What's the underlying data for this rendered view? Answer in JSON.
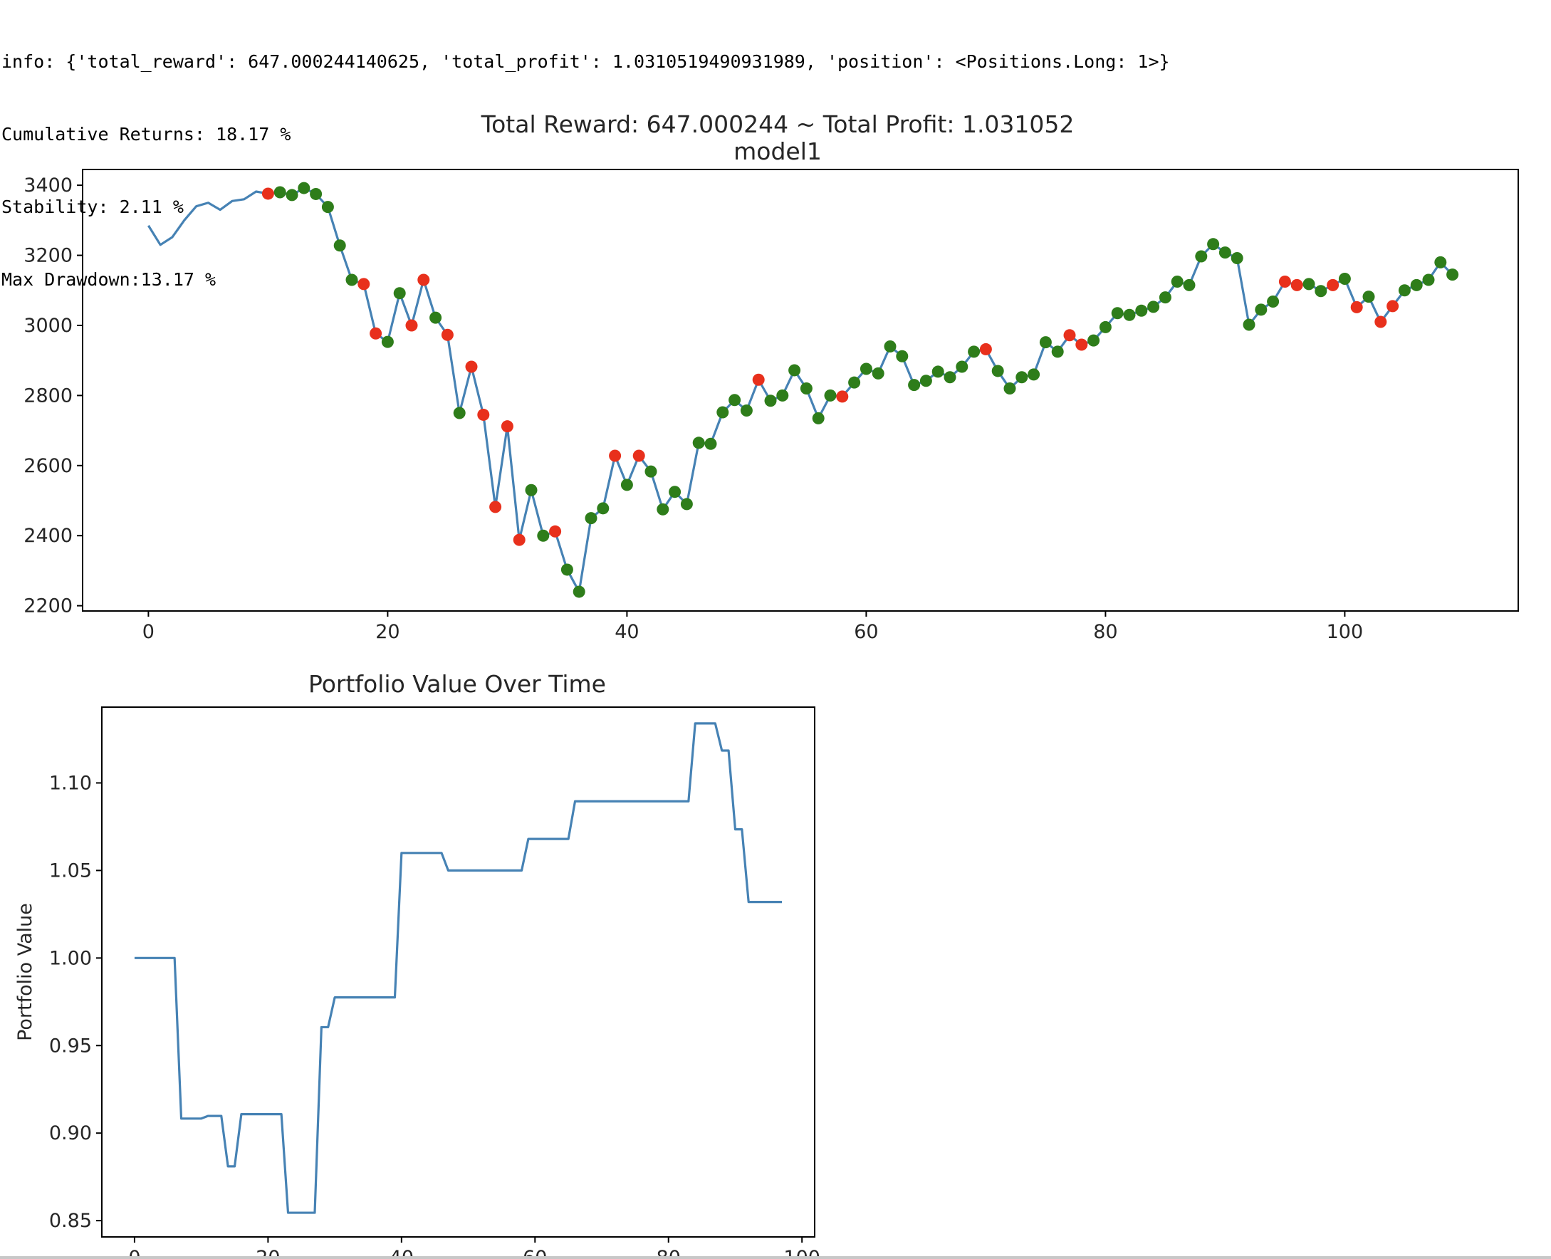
{
  "console": {
    "lines": [
      "info: {'total_reward': 647.000244140625, 'total_profit': 1.0310519490931989, 'position': <Positions.Long: 1>}",
      "Cumulative Returns: 18.17 %",
      "Stability: 2.11 %",
      "Max Drawdown:13.17 %"
    ]
  },
  "colors": {
    "line": "#4682b4",
    "buy_marker": "#2e7d1a",
    "sell_marker": "#e8301c",
    "axis": "#000000",
    "text": "#262626"
  },
  "chart_data": [
    {
      "type": "line",
      "title": "Total Reward: 647.000244 ~ Total Profit: 1.031052",
      "subtitle": "model1",
      "xlabel": "",
      "ylabel": "",
      "xlim": [
        -5.5,
        114.5
      ],
      "ylim": [
        2185,
        3445
      ],
      "xticks": [
        0,
        20,
        40,
        60,
        80,
        100
      ],
      "yticks": [
        2200,
        2400,
        2600,
        2800,
        3000,
        3200,
        3400
      ],
      "grid": false,
      "series": [
        {
          "values": [
            3285,
            3230,
            3252,
            3300,
            3340,
            3350,
            3330,
            3355,
            3360,
            3382,
            3376,
            3380,
            3372,
            3392,
            3375,
            3338,
            3228,
            3130,
            3118,
            2977,
            2953,
            3092,
            3000,
            3130,
            3022,
            2973,
            2750,
            2882,
            2745,
            2482,
            2712,
            2388,
            2530,
            2400,
            2412,
            2303,
            2240,
            2450,
            2478,
            2628,
            2545,
            2628,
            2583,
            2475,
            2525,
            2490,
            2665,
            2662,
            2752,
            2787,
            2757,
            2845,
            2785,
            2800,
            2872,
            2820,
            2735,
            2800,
            2797,
            2837,
            2876,
            2863,
            2940,
            2912,
            2830,
            2842,
            2868,
            2852,
            2882,
            2925,
            2932,
            2870,
            2820,
            2852,
            2860,
            2952,
            2925,
            2972,
            2945,
            2957,
            2995,
            3035,
            3030,
            3042,
            3053,
            3080,
            3125,
            3115,
            3197,
            3232,
            3208,
            3192,
            3002,
            3045,
            3068,
            3125,
            3115,
            3118,
            3098,
            3115,
            3133,
            3052,
            3082,
            3010,
            3055,
            3100,
            3115,
            3130,
            3180,
            3145
          ]
        }
      ],
      "markers": {
        "start_index": 10,
        "sell_indices": [
          10,
          18,
          19,
          22,
          23,
          25,
          27,
          28,
          29,
          30,
          31,
          34,
          39,
          41,
          51,
          58,
          70,
          77,
          78,
          95,
          96,
          99,
          101,
          103,
          104
        ]
      }
    },
    {
      "type": "line",
      "title": "Portfolio Value Over Time",
      "xlabel": "",
      "ylabel": "Portfolio Value",
      "xlim": [
        -4.9,
        101.9
      ],
      "ylim": [
        0.8407,
        1.1433
      ],
      "xticks": [
        0,
        20,
        40,
        60,
        80,
        100
      ],
      "yticks": [
        0.85,
        0.9,
        0.95,
        1.0,
        1.05,
        1.1
      ],
      "ytick_labels": [
        "0.85",
        "0.90",
        "0.95",
        "1.00",
        "1.05",
        "1.10"
      ],
      "grid": false,
      "series": [
        {
          "points": [
            [
              0,
              1.0
            ],
            [
              6,
              1.0
            ],
            [
              7,
              0.9083
            ],
            [
              10,
              0.9083
            ],
            [
              11,
              0.9098
            ],
            [
              13,
              0.9098
            ],
            [
              14,
              0.881
            ],
            [
              15,
              0.881
            ],
            [
              16,
              0.9108
            ],
            [
              22,
              0.9108
            ],
            [
              23,
              0.8545
            ],
            [
              27,
              0.8545
            ],
            [
              28,
              0.9605
            ],
            [
              29,
              0.9605
            ],
            [
              30,
              0.9775
            ],
            [
              39,
              0.9775
            ],
            [
              40,
              1.06
            ],
            [
              46,
              1.06
            ],
            [
              47,
              1.05
            ],
            [
              58,
              1.05
            ],
            [
              59,
              1.068
            ],
            [
              65,
              1.068
            ],
            [
              66,
              1.0895
            ],
            [
              83,
              1.0895
            ],
            [
              84,
              1.134
            ],
            [
              87,
              1.134
            ],
            [
              88,
              1.1185
            ],
            [
              89,
              1.1185
            ],
            [
              90,
              1.0735
            ],
            [
              91,
              1.0735
            ],
            [
              92,
              1.032
            ],
            [
              97,
              1.032
            ]
          ]
        }
      ]
    }
  ]
}
